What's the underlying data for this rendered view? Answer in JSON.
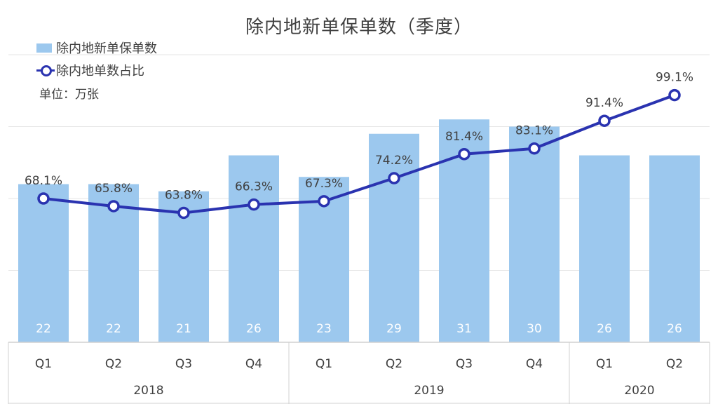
{
  "chart_data": {
    "type": "bar+line",
    "title": "除内地新单保单数（季度）",
    "unit_label": "单位：万张",
    "categories": [
      "Q1",
      "Q2",
      "Q3",
      "Q4",
      "Q1",
      "Q2",
      "Q3",
      "Q4",
      "Q1",
      "Q2"
    ],
    "groups": [
      {
        "label": "2018",
        "count": 4
      },
      {
        "label": "2019",
        "count": 4
      },
      {
        "label": "2020",
        "count": 2
      }
    ],
    "series": [
      {
        "name": "除内地新单保单数",
        "type": "bar",
        "color": "#9CC8EE",
        "values": [
          22,
          22,
          21,
          26,
          23,
          29,
          31,
          30,
          26,
          26
        ],
        "labels": [
          "22",
          "22",
          "21",
          "26",
          "23",
          "29",
          "31",
          "30",
          "26",
          "26"
        ]
      },
      {
        "name": "除内地单数占比",
        "type": "line",
        "color": "#2A33B0",
        "values": [
          68.1,
          65.8,
          63.8,
          66.3,
          67.3,
          74.2,
          81.4,
          83.1,
          91.4,
          99.1
        ],
        "labels": [
          "68.1%",
          "65.8%",
          "63.8%",
          "66.3%",
          "67.3%",
          "74.2%",
          "81.4%",
          "83.1%",
          "91.4%",
          "99.1%"
        ]
      }
    ],
    "bar_ylim": [
      0,
      40
    ],
    "line_ylim": [
      25,
      115
    ],
    "grid": true,
    "legend_position": "top-left"
  }
}
